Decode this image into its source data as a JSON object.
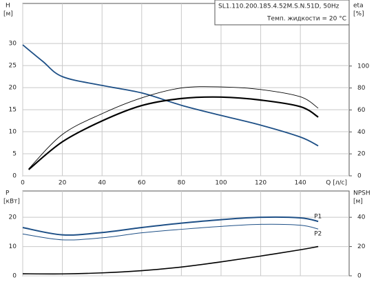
{
  "chart_data": [
    {
      "type": "line",
      "title": "SL1.110.200.185.4.52M.S.N.51D, 50Hz",
      "subtitle": "Темп. жидкости = 20 °C",
      "ylabel": "H",
      "yunit": "[м]",
      "y2label": "eta",
      "y2unit": "[%]",
      "xlabel": "Q [л/с]",
      "xlim": [
        0,
        164.6
      ],
      "xticks": [
        0,
        20,
        40,
        60,
        80,
        100,
        120,
        140
      ],
      "ylim": [
        0,
        39.1
      ],
      "yticks": [
        0,
        5,
        10,
        15,
        20,
        25,
        30
      ],
      "y2lim": [
        0,
        157
      ],
      "y2ticks": [
        0,
        20,
        40,
        60,
        80,
        100
      ],
      "grid": true,
      "series": [
        {
          "color": "#1d4f86",
          "axis": "y",
          "x": [
            0,
            10,
            20,
            40,
            60,
            80,
            100,
            120,
            140,
            149
          ],
          "values": [
            29.7,
            26,
            22.5,
            20.5,
            18.8,
            16,
            13.7,
            11.5,
            8.8,
            6.8
          ]
        },
        {
          "color": "#000000",
          "axis": "y2",
          "x": [
            3,
            20,
            40,
            60,
            80,
            100,
            120,
            140,
            149
          ],
          "values": [
            6.3,
            37.7,
            56.6,
            71,
            80,
            81,
            78.6,
            72,
            61.6
          ]
        },
        {
          "color": "#000000",
          "axis": "y2",
          "x": [
            3,
            20,
            40,
            60,
            80,
            100,
            120,
            140,
            149
          ],
          "values": [
            5.7,
            31,
            50,
            64,
            70.4,
            71.7,
            69,
            63,
            53.5
          ]
        }
      ]
    },
    {
      "type": "line",
      "ylabel": "P",
      "yunit": "[кВт]",
      "y2label": "NPSH",
      "y2unit": "[м]",
      "xlim": [
        0,
        164.6
      ],
      "xticks": [
        0,
        20,
        40,
        60,
        80,
        100,
        120,
        140
      ],
      "ylim": [
        0,
        29
      ],
      "yticks": [
        0,
        10,
        20
      ],
      "y2lim": [
        0,
        58
      ],
      "y2ticks": [
        0,
        20,
        40
      ],
      "grid": true,
      "series": [
        {
          "name": "P1",
          "color": "#1d4f86",
          "axis": "y",
          "x": [
            0,
            20,
            40,
            60,
            80,
            100,
            120,
            140,
            149
          ],
          "values": [
            16.5,
            14,
            14.8,
            16.5,
            18,
            19.2,
            20,
            19.8,
            18.6
          ]
        },
        {
          "name": "P2",
          "color": "#1d4f86",
          "axis": "y",
          "x": [
            0,
            20,
            40,
            60,
            80,
            100,
            120,
            140,
            149
          ],
          "values": [
            14.3,
            12.3,
            13,
            14.7,
            15.9,
            16.9,
            17.6,
            17.3,
            16
          ]
        },
        {
          "color": "#000000",
          "axis": "y2",
          "x": [
            0,
            20,
            40,
            60,
            80,
            100,
            120,
            140,
            149
          ],
          "values": [
            1.4,
            1.3,
            2,
            3.5,
            6,
            9.5,
            13.5,
            17.8,
            20
          ]
        }
      ]
    }
  ]
}
